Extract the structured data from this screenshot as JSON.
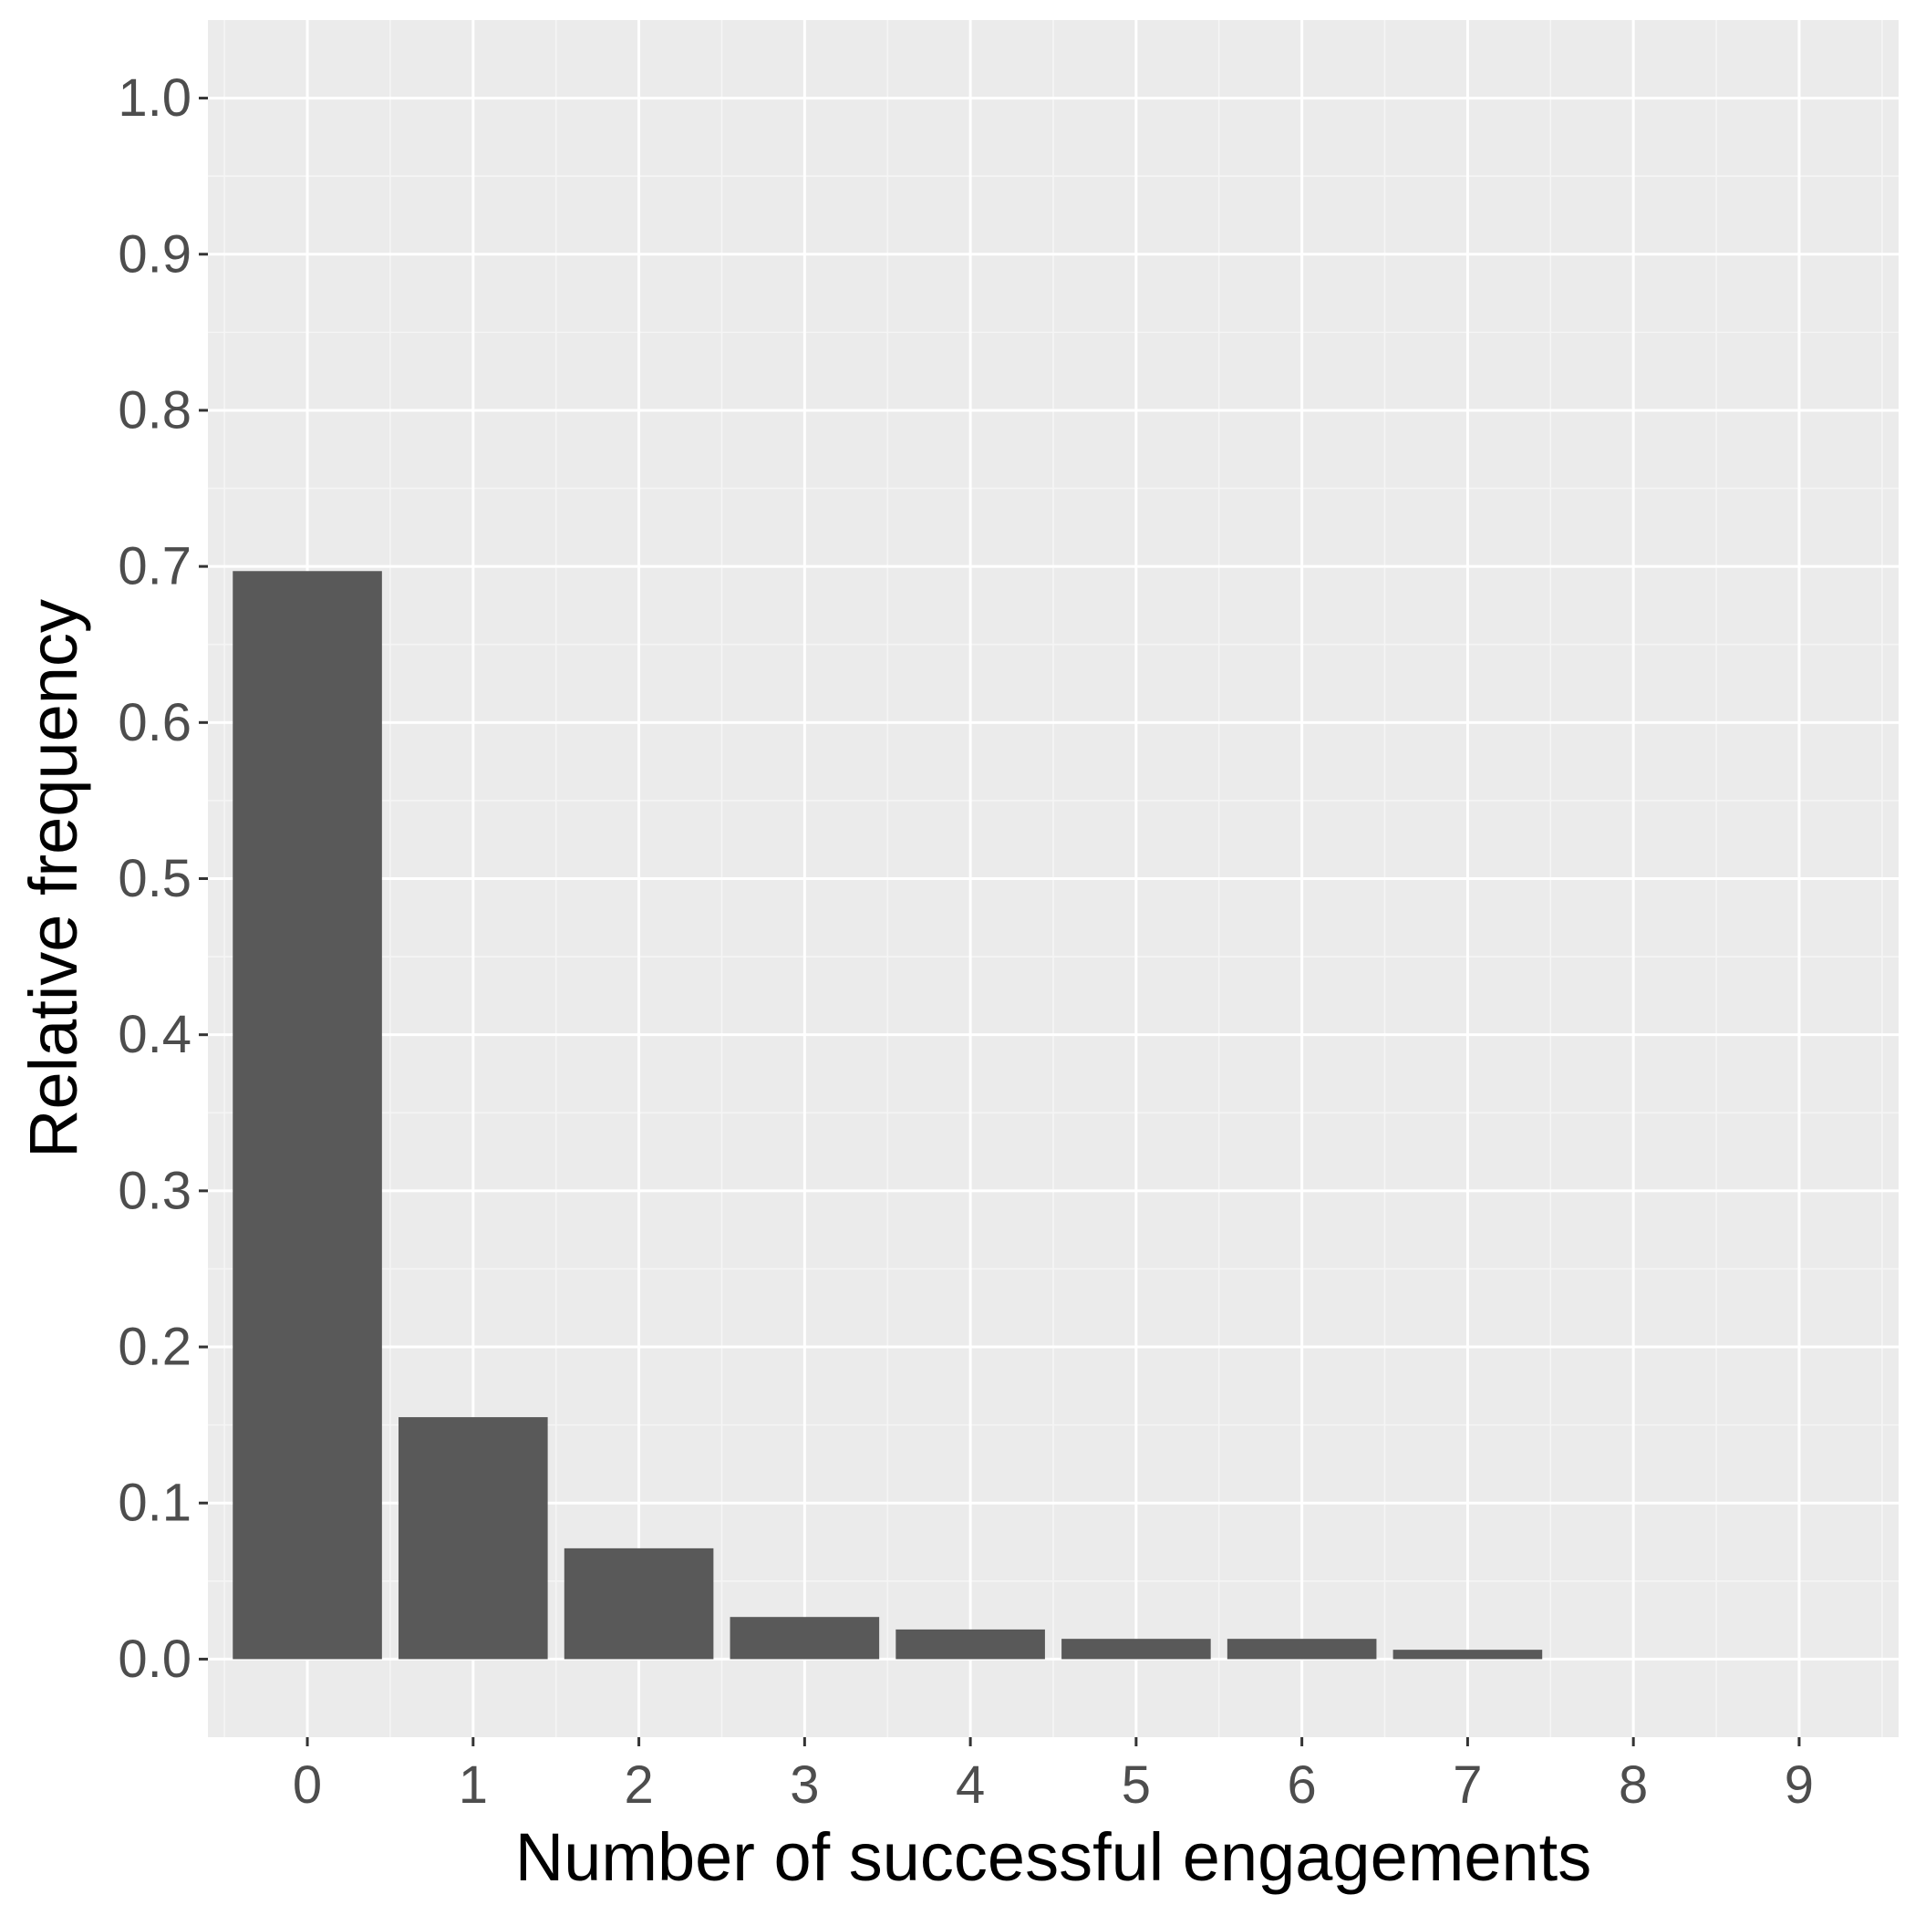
{
  "chart_data": {
    "type": "bar",
    "title": "",
    "xlabel": "Number of successful engagements",
    "ylabel": "Relative frequency",
    "categories": [
      "0",
      "1",
      "2",
      "3",
      "4",
      "5",
      "6",
      "7",
      "8",
      "9"
    ],
    "values": [
      0.697,
      0.155,
      0.071,
      0.027,
      0.019,
      0.013,
      0.013,
      0.006,
      0,
      0
    ],
    "x_ticks": [
      "0",
      "1",
      "2",
      "3",
      "4",
      "5",
      "6",
      "7",
      "8",
      "9"
    ],
    "y_ticks": [
      "0.0",
      "0.1",
      "0.2",
      "0.3",
      "0.4",
      "0.5",
      "0.6",
      "0.7",
      "0.8",
      "0.9",
      "1.0"
    ],
    "ylim": [
      -0.05,
      1.05
    ],
    "grid": true,
    "legend": "none",
    "colors": {
      "bar": "#595959",
      "panel_background": "#ebebeb",
      "grid_major": "#ffffff",
      "grid_minor": "#f5f5f5",
      "tick_label": "#4d4d4d",
      "axis_title": "#000000"
    }
  }
}
